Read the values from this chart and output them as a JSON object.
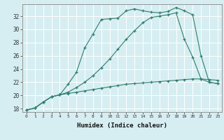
{
  "xlabel": "Humidex (Indice chaleur)",
  "bg_color": "#d6eef2",
  "line_color": "#2e7d6e",
  "grid_color": "#ffffff",
  "xlim": [
    -0.5,
    23.5
  ],
  "ylim": [
    17.5,
    33.8
  ],
  "yticks": [
    18,
    20,
    22,
    24,
    26,
    28,
    30,
    32
  ],
  "xticks": [
    0,
    1,
    2,
    3,
    4,
    5,
    6,
    7,
    8,
    9,
    10,
    11,
    12,
    13,
    14,
    15,
    16,
    17,
    18,
    19,
    20,
    21,
    22,
    23
  ],
  "curve1_x": [
    0,
    1,
    2,
    3,
    4,
    5,
    6,
    7,
    8,
    9,
    10,
    11,
    12,
    13,
    14,
    15,
    16,
    17,
    18,
    19,
    20,
    21,
    22,
    23
  ],
  "curve1_y": [
    17.8,
    18.1,
    19.0,
    19.8,
    20.1,
    21.7,
    23.5,
    27.2,
    29.3,
    31.5,
    31.6,
    31.7,
    32.8,
    33.1,
    32.8,
    32.6,
    32.5,
    32.7,
    33.3,
    32.8,
    32.2,
    26.0,
    22.0,
    21.8
  ],
  "curve2_x": [
    0,
    1,
    2,
    3,
    4,
    5,
    6,
    7,
    8,
    9,
    10,
    11,
    12,
    13,
    14,
    15,
    16,
    17,
    18,
    19,
    20,
    21,
    22,
    23
  ],
  "curve2_y": [
    17.8,
    18.1,
    19.0,
    19.8,
    20.1,
    20.5,
    21.2,
    22.0,
    23.0,
    24.2,
    25.5,
    27.0,
    28.5,
    29.8,
    31.0,
    31.8,
    32.0,
    32.2,
    32.5,
    28.5,
    25.8,
    22.5,
    22.0,
    21.8
  ],
  "curve3_x": [
    0,
    1,
    2,
    3,
    4,
    5,
    6,
    7,
    8,
    9,
    10,
    11,
    12,
    13,
    14,
    15,
    16,
    17,
    18,
    19,
    20,
    21,
    22,
    23
  ],
  "curve3_y": [
    17.8,
    18.1,
    19.0,
    19.8,
    20.1,
    20.3,
    20.5,
    20.7,
    20.9,
    21.1,
    21.3,
    21.5,
    21.7,
    21.8,
    21.9,
    22.0,
    22.1,
    22.2,
    22.3,
    22.4,
    22.5,
    22.5,
    22.4,
    22.3
  ]
}
